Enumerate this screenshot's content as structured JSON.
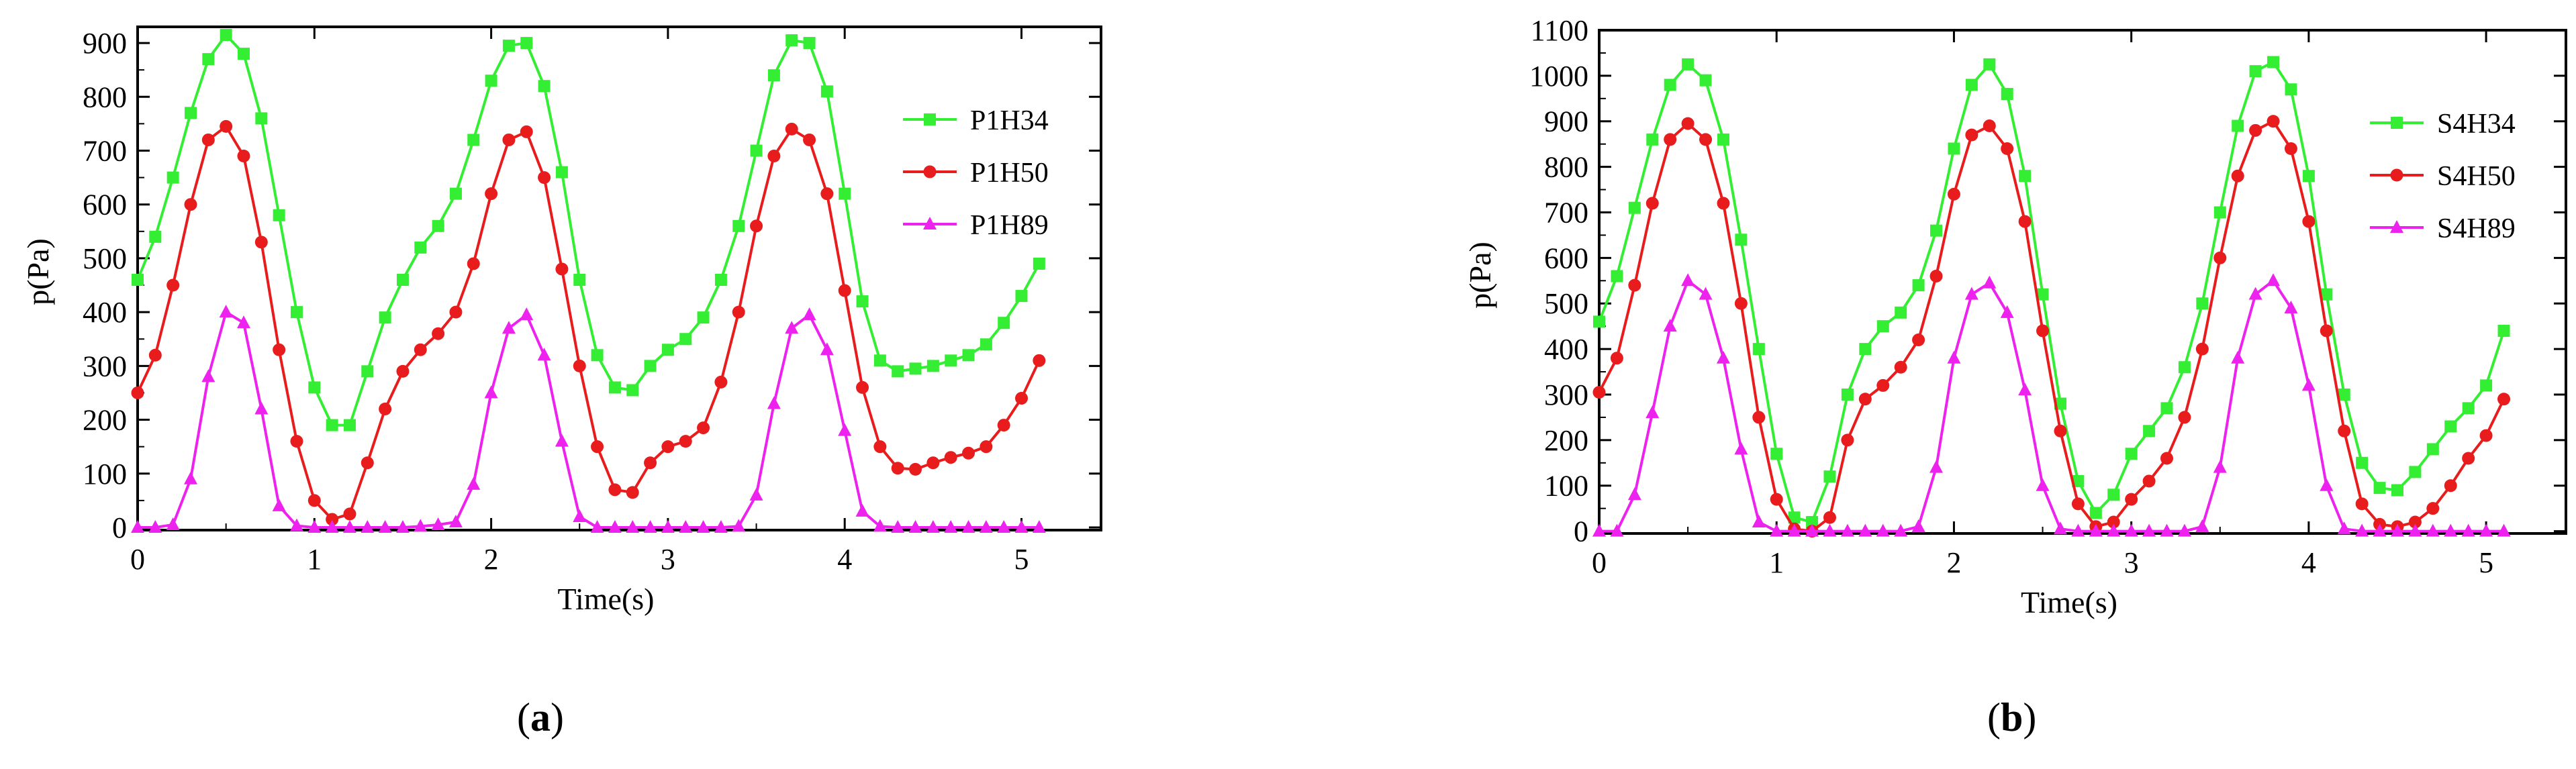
{
  "panels": [
    {
      "caption_letter": "a",
      "chart_data": {
        "type": "line",
        "xlabel": "Time(s)",
        "ylabel": "p(Pa)",
        "xlim": [
          0,
          5.45
        ],
        "ylim": [
          -5,
          930
        ],
        "xticks": [
          0,
          1,
          2,
          3,
          4,
          5
        ],
        "yticks": [
          0,
          100,
          200,
          300,
          400,
          500,
          600,
          700,
          800,
          900
        ],
        "grid": false,
        "legend_position": "top-right",
        "series": [
          {
            "name": "P1H34",
            "color": "#33ee33",
            "marker": "square",
            "x": [
              0,
              0.1,
              0.2,
              0.3,
              0.4,
              0.5,
              0.6,
              0.7,
              0.8,
              0.9,
              1.0,
              1.1,
              1.2,
              1.3,
              1.4,
              1.5,
              1.6,
              1.7,
              1.8,
              1.9,
              2.0,
              2.1,
              2.2,
              2.3,
              2.4,
              2.5,
              2.6,
              2.7,
              2.8,
              2.9,
              3.0,
              3.1,
              3.2,
              3.3,
              3.4,
              3.5,
              3.6,
              3.7,
              3.8,
              3.9,
              4.0,
              4.1,
              4.2,
              4.3,
              4.4,
              4.5,
              4.6,
              4.7,
              4.8,
              4.9,
              5.0,
              5.1
            ],
            "y": [
              460,
              540,
              650,
              770,
              870,
              915,
              880,
              760,
              580,
              400,
              260,
              190,
              190,
              290,
              390,
              460,
              520,
              560,
              620,
              720,
              830,
              895,
              900,
              820,
              660,
              460,
              320,
              260,
              255,
              300,
              330,
              350,
              390,
              460,
              560,
              700,
              840,
              905,
              900,
              810,
              620,
              420,
              310,
              290,
              295,
              300,
              310,
              320,
              340,
              380,
              430,
              490
            ]
          },
          {
            "name": "P1H50",
            "color": "#e81c1c",
            "marker": "circle",
            "x": [
              0,
              0.1,
              0.2,
              0.3,
              0.4,
              0.5,
              0.6,
              0.7,
              0.8,
              0.9,
              1.0,
              1.1,
              1.2,
              1.3,
              1.4,
              1.5,
              1.6,
              1.7,
              1.8,
              1.9,
              2.0,
              2.1,
              2.2,
              2.3,
              2.4,
              2.5,
              2.6,
              2.7,
              2.8,
              2.9,
              3.0,
              3.1,
              3.2,
              3.3,
              3.4,
              3.5,
              3.6,
              3.7,
              3.8,
              3.9,
              4.0,
              4.1,
              4.2,
              4.3,
              4.4,
              4.5,
              4.6,
              4.7,
              4.8,
              4.9,
              5.0,
              5.1
            ],
            "y": [
              250,
              320,
              450,
              600,
              720,
              745,
              690,
              530,
              330,
              160,
              50,
              15,
              25,
              120,
              220,
              290,
              330,
              360,
              400,
              490,
              620,
              720,
              735,
              650,
              480,
              300,
              150,
              70,
              65,
              120,
              150,
              160,
              185,
              270,
              400,
              560,
              690,
              740,
              720,
              620,
              440,
              260,
              150,
              110,
              108,
              120,
              130,
              138,
              150,
              190,
              240,
              310
            ]
          },
          {
            "name": "P1H89",
            "color": "#ee22ee",
            "marker": "triangle",
            "x": [
              0,
              0.1,
              0.2,
              0.3,
              0.4,
              0.5,
              0.6,
              0.7,
              0.8,
              0.9,
              1.0,
              1.1,
              1.2,
              1.3,
              1.4,
              1.5,
              1.6,
              1.7,
              1.8,
              1.9,
              2.0,
              2.1,
              2.2,
              2.3,
              2.4,
              2.5,
              2.6,
              2.7,
              2.8,
              2.9,
              3.0,
              3.1,
              3.2,
              3.3,
              3.4,
              3.5,
              3.6,
              3.7,
              3.8,
              3.9,
              4.0,
              4.1,
              4.2,
              4.3,
              4.4,
              4.5,
              4.6,
              4.7,
              4.8,
              4.9,
              5.0,
              5.1
            ],
            "y": [
              0,
              0,
              5,
              90,
              280,
              400,
              380,
              220,
              40,
              3,
              0,
              0,
              0,
              0,
              0,
              0,
              2,
              5,
              10,
              80,
              250,
              370,
              395,
              320,
              160,
              20,
              0,
              0,
              0,
              0,
              0,
              0,
              0,
              0,
              2,
              60,
              230,
              370,
              395,
              330,
              180,
              30,
              2,
              0,
              0,
              0,
              0,
              0,
              0,
              0,
              0,
              0
            ]
          }
        ]
      }
    },
    {
      "caption_letter": "b",
      "chart_data": {
        "type": "line",
        "xlabel": "Time(s)",
        "ylabel": "p(Pa)",
        "xlim": [
          0,
          5.45
        ],
        "ylim": [
          -5,
          1100
        ],
        "xticks": [
          0,
          1,
          2,
          3,
          4,
          5
        ],
        "yticks": [
          0,
          100,
          200,
          300,
          400,
          500,
          600,
          700,
          800,
          900,
          1000,
          1100
        ],
        "grid": false,
        "legend_position": "top-right",
        "series": [
          {
            "name": "S4H34",
            "color": "#33ee33",
            "marker": "square",
            "x": [
              0,
              0.1,
              0.2,
              0.3,
              0.4,
              0.5,
              0.6,
              0.7,
              0.8,
              0.9,
              1.0,
              1.1,
              1.2,
              1.3,
              1.4,
              1.5,
              1.6,
              1.7,
              1.8,
              1.9,
              2.0,
              2.1,
              2.2,
              2.3,
              2.4,
              2.5,
              2.6,
              2.7,
              2.8,
              2.9,
              3.0,
              3.1,
              3.2,
              3.3,
              3.4,
              3.5,
              3.6,
              3.7,
              3.8,
              3.9,
              4.0,
              4.1,
              4.2,
              4.3,
              4.4,
              4.5,
              4.6,
              4.7,
              4.8,
              4.9,
              5.0,
              5.1
            ],
            "y": [
              460,
              560,
              710,
              860,
              980,
              1025,
              990,
              860,
              640,
              400,
              170,
              30,
              20,
              120,
              300,
              400,
              450,
              480,
              540,
              660,
              840,
              980,
              1025,
              960,
              780,
              520,
              280,
              110,
              40,
              80,
              170,
              220,
              270,
              360,
              500,
              700,
              890,
              1010,
              1030,
              970,
              780,
              520,
              300,
              150,
              95,
              90,
              130,
              180,
              230,
              270,
              320,
              440
            ]
          },
          {
            "name": "S4H50",
            "color": "#e81c1c",
            "marker": "circle",
            "x": [
              0,
              0.1,
              0.2,
              0.3,
              0.4,
              0.5,
              0.6,
              0.7,
              0.8,
              0.9,
              1.0,
              1.1,
              1.2,
              1.3,
              1.4,
              1.5,
              1.6,
              1.7,
              1.8,
              1.9,
              2.0,
              2.1,
              2.2,
              2.3,
              2.4,
              2.5,
              2.6,
              2.7,
              2.8,
              2.9,
              3.0,
              3.1,
              3.2,
              3.3,
              3.4,
              3.5,
              3.6,
              3.7,
              3.8,
              3.9,
              4.0,
              4.1,
              4.2,
              4.3,
              4.4,
              4.5,
              4.6,
              4.7,
              4.8,
              4.9,
              5.0,
              5.1
            ],
            "y": [
              305,
              380,
              540,
              720,
              860,
              895,
              860,
              720,
              500,
              250,
              70,
              5,
              0,
              30,
              200,
              290,
              320,
              360,
              420,
              560,
              740,
              870,
              890,
              840,
              680,
              440,
              220,
              60,
              10,
              20,
              70,
              110,
              160,
              250,
              400,
              600,
              780,
              880,
              900,
              840,
              680,
              440,
              220,
              60,
              15,
              10,
              20,
              50,
              100,
              160,
              210,
              290
            ]
          },
          {
            "name": "S4H89",
            "color": "#ee22ee",
            "marker": "triangle",
            "x": [
              0,
              0.1,
              0.2,
              0.3,
              0.4,
              0.5,
              0.6,
              0.7,
              0.8,
              0.9,
              1.0,
              1.1,
              1.2,
              1.3,
              1.4,
              1.5,
              1.6,
              1.7,
              1.8,
              1.9,
              2.0,
              2.1,
              2.2,
              2.3,
              2.4,
              2.5,
              2.6,
              2.7,
              2.8,
              2.9,
              3.0,
              3.1,
              3.2,
              3.3,
              3.4,
              3.5,
              3.6,
              3.7,
              3.8,
              3.9,
              4.0,
              4.1,
              4.2,
              4.3,
              4.4,
              4.5,
              4.6,
              4.7,
              4.8,
              4.9,
              5.0,
              5.1
            ],
            "y": [
              0,
              0,
              80,
              260,
              450,
              550,
              520,
              380,
              180,
              20,
              0,
              0,
              0,
              0,
              0,
              0,
              0,
              0,
              10,
              140,
              380,
              520,
              545,
              480,
              310,
              100,
              5,
              0,
              0,
              0,
              0,
              0,
              0,
              0,
              10,
              140,
              380,
              520,
              550,
              490,
              320,
              100,
              5,
              0,
              0,
              0,
              0,
              0,
              0,
              0,
              0,
              0
            ]
          }
        ]
      }
    }
  ]
}
